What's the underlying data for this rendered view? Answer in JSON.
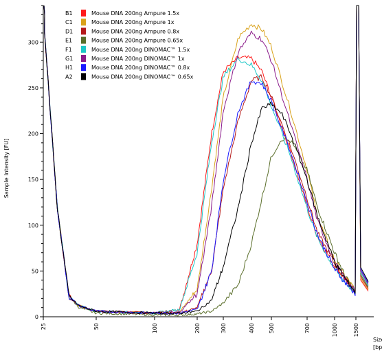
{
  "chart_data": {
    "type": "line",
    "title": "",
    "xlabel": "Size [bp]",
    "xlabel_lines": [
      "Size",
      "[bp]"
    ],
    "ylabel": "Sample Intensity [FU]",
    "ylim": [
      0,
      340
    ],
    "yticks": [
      0,
      50,
      100,
      150,
      200,
      250,
      300
    ],
    "x_scale": "log (electropherogram size axis)",
    "xtick_labels": [
      "25",
      "50",
      "100",
      "200",
      "300",
      "400",
      "500",
      "700",
      "1000",
      "1500"
    ],
    "grid": false,
    "legend_position": "top-left",
    "lower_marker": {
      "size_bp": 25,
      "peak_fu": 340
    },
    "upper_marker": {
      "size_bp": 1500,
      "peak_fu": 340
    },
    "series": [
      {
        "well": "B1",
        "name": "Mouse DNA 200ng Ampure 1.5x",
        "color": "#ff1a1a",
        "points": [
          [
            25,
            330
          ],
          [
            30,
            120
          ],
          [
            35,
            22
          ],
          [
            40,
            12
          ],
          [
            50,
            6
          ],
          [
            100,
            4
          ],
          [
            150,
            8
          ],
          [
            200,
            80
          ],
          [
            250,
            200
          ],
          [
            300,
            268
          ],
          [
            350,
            283
          ],
          [
            400,
            282
          ],
          [
            450,
            268
          ],
          [
            500,
            240
          ],
          [
            600,
            180
          ],
          [
            700,
            120
          ],
          [
            800,
            88
          ],
          [
            1000,
            55
          ],
          [
            1200,
            42
          ],
          [
            1400,
            30
          ]
        ]
      },
      {
        "well": "C1",
        "name": "Mouse DNA 200ng Ampure 1x",
        "color": "#d9a21b",
        "points": [
          [
            25,
            330
          ],
          [
            30,
            120
          ],
          [
            35,
            22
          ],
          [
            40,
            12
          ],
          [
            50,
            6
          ],
          [
            100,
            4
          ],
          [
            150,
            5
          ],
          [
            200,
            30
          ],
          [
            250,
            140
          ],
          [
            300,
            240
          ],
          [
            350,
            305
          ],
          [
            400,
            320
          ],
          [
            450,
            314
          ],
          [
            500,
            295
          ],
          [
            600,
            225
          ],
          [
            700,
            160
          ],
          [
            800,
            110
          ],
          [
            1000,
            62
          ],
          [
            1200,
            45
          ],
          [
            1400,
            32
          ]
        ]
      },
      {
        "well": "D1",
        "name": "Mouse DNA 200ng Ampure 0.8x",
        "color": "#b51a1a",
        "points": [
          [
            25,
            330
          ],
          [
            30,
            120
          ],
          [
            35,
            22
          ],
          [
            40,
            12
          ],
          [
            50,
            6
          ],
          [
            100,
            4
          ],
          [
            150,
            4
          ],
          [
            200,
            10
          ],
          [
            250,
            50
          ],
          [
            300,
            140
          ],
          [
            350,
            215
          ],
          [
            400,
            258
          ],
          [
            450,
            262
          ],
          [
            500,
            240
          ],
          [
            600,
            185
          ],
          [
            700,
            130
          ],
          [
            800,
            92
          ],
          [
            1000,
            58
          ],
          [
            1200,
            42
          ],
          [
            1400,
            30
          ]
        ]
      },
      {
        "well": "E1",
        "name": "Mouse DNA 200ng Ampure 0.65x",
        "color": "#5a6e2a",
        "points": [
          [
            25,
            330
          ],
          [
            30,
            120
          ],
          [
            35,
            22
          ],
          [
            40,
            10
          ],
          [
            50,
            4
          ],
          [
            100,
            2
          ],
          [
            150,
            2
          ],
          [
            200,
            3
          ],
          [
            250,
            6
          ],
          [
            300,
            15
          ],
          [
            350,
            35
          ],
          [
            400,
            80
          ],
          [
            450,
            130
          ],
          [
            500,
            175
          ],
          [
            550,
            195
          ],
          [
            600,
            192
          ],
          [
            700,
            160
          ],
          [
            800,
            120
          ],
          [
            1000,
            70
          ],
          [
            1200,
            45
          ],
          [
            1400,
            30
          ]
        ]
      },
      {
        "well": "F1",
        "name": "Mouse DNA 200ng DINOMAC™ 1.5x",
        "color": "#1ec8c8",
        "points": [
          [
            25,
            330
          ],
          [
            30,
            120
          ],
          [
            35,
            22
          ],
          [
            40,
            12
          ],
          [
            50,
            6
          ],
          [
            100,
            4
          ],
          [
            150,
            8
          ],
          [
            200,
            70
          ],
          [
            250,
            190
          ],
          [
            300,
            262
          ],
          [
            350,
            282
          ],
          [
            400,
            275
          ],
          [
            450,
            258
          ],
          [
            500,
            230
          ],
          [
            600,
            175
          ],
          [
            700,
            118
          ],
          [
            800,
            86
          ],
          [
            1000,
            52
          ],
          [
            1200,
            38
          ],
          [
            1400,
            28
          ]
        ]
      },
      {
        "well": "G1",
        "name": "Mouse DNA 200ng DINOMAC™ 1x",
        "color": "#8a1a8a",
        "points": [
          [
            25,
            330
          ],
          [
            30,
            120
          ],
          [
            35,
            22
          ],
          [
            40,
            12
          ],
          [
            50,
            6
          ],
          [
            100,
            4
          ],
          [
            150,
            5
          ],
          [
            200,
            25
          ],
          [
            250,
            120
          ],
          [
            300,
            225
          ],
          [
            350,
            290
          ],
          [
            400,
            310
          ],
          [
            450,
            303
          ],
          [
            500,
            280
          ],
          [
            600,
            210
          ],
          [
            700,
            150
          ],
          [
            800,
            105
          ],
          [
            1000,
            60
          ],
          [
            1200,
            42
          ],
          [
            1400,
            30
          ]
        ]
      },
      {
        "well": "H1",
        "name": "Mouse DNA 200ng DINOMAC™ 0.8x",
        "color": "#1a1aff",
        "points": [
          [
            25,
            330
          ],
          [
            30,
            120
          ],
          [
            35,
            22
          ],
          [
            40,
            12
          ],
          [
            50,
            6
          ],
          [
            100,
            4
          ],
          [
            150,
            4
          ],
          [
            200,
            8
          ],
          [
            250,
            50
          ],
          [
            300,
            150
          ],
          [
            350,
            225
          ],
          [
            400,
            258
          ],
          [
            450,
            255
          ],
          [
            500,
            235
          ],
          [
            600,
            180
          ],
          [
            700,
            125
          ],
          [
            800,
            90
          ],
          [
            1000,
            52
          ],
          [
            1200,
            38
          ],
          [
            1400,
            27
          ]
        ]
      },
      {
        "well": "A2",
        "name": "Mouse DNA 200ng DINOMAC™ 0.65x",
        "color": "#000000",
        "points": [
          [
            25,
            330
          ],
          [
            30,
            120
          ],
          [
            35,
            22
          ],
          [
            40,
            12
          ],
          [
            50,
            6
          ],
          [
            100,
            4
          ],
          [
            150,
            4
          ],
          [
            200,
            6
          ],
          [
            250,
            18
          ],
          [
            300,
            55
          ],
          [
            350,
            120
          ],
          [
            400,
            190
          ],
          [
            450,
            228
          ],
          [
            500,
            232
          ],
          [
            550,
            222
          ],
          [
            600,
            200
          ],
          [
            700,
            150
          ],
          [
            800,
            110
          ],
          [
            1000,
            60
          ],
          [
            1200,
            42
          ],
          [
            1400,
            30
          ]
        ]
      }
    ]
  }
}
